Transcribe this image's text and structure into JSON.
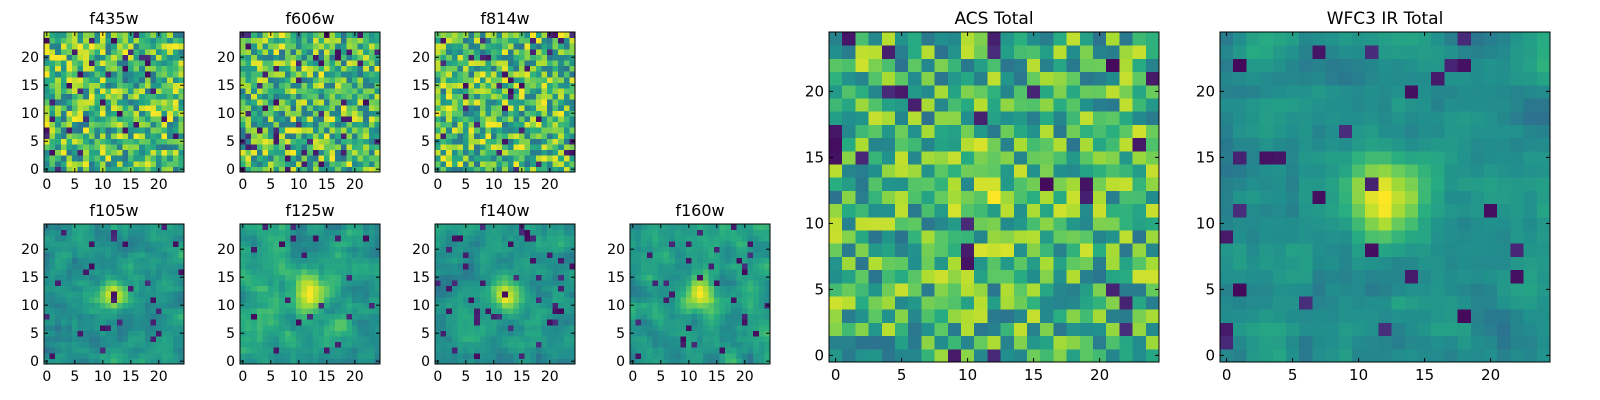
{
  "chart_data": {
    "type": "heatmap",
    "colormap": "viridis",
    "panels": [
      {
        "id": "f435w",
        "title": "f435w",
        "size": 25,
        "xlim": [
          -0.5,
          24.5
        ],
        "ylim": [
          -0.5,
          24.5
        ],
        "xticks": [
          0,
          5,
          10,
          15,
          20
        ],
        "yticks": [
          0,
          5,
          10,
          15,
          20
        ],
        "peak": 0.0,
        "dark_fraction": 0.06,
        "smooth": 0,
        "seed": 11
      },
      {
        "id": "f606w",
        "title": "f606w",
        "size": 25,
        "xlim": [
          -0.5,
          24.5
        ],
        "ylim": [
          -0.5,
          24.5
        ],
        "xticks": [
          0,
          5,
          10,
          15,
          20
        ],
        "yticks": [
          0,
          5,
          10,
          15,
          20
        ],
        "peak": 0.0,
        "dark_fraction": 0.06,
        "smooth": 0,
        "seed": 23
      },
      {
        "id": "f814w",
        "title": "f814w",
        "size": 25,
        "xlim": [
          -0.5,
          24.5
        ],
        "ylim": [
          -0.5,
          24.5
        ],
        "xticks": [
          0,
          5,
          10,
          15,
          20
        ],
        "yticks": [
          0,
          5,
          10,
          15,
          20
        ],
        "peak": 0.0,
        "dark_fraction": 0.06,
        "smooth": 0,
        "seed": 37
      },
      {
        "id": "f105w",
        "title": "f105w",
        "size": 25,
        "xlim": [
          -0.5,
          24.5
        ],
        "ylim": [
          -0.5,
          24.5
        ],
        "xticks": [
          0,
          5,
          10,
          15,
          20
        ],
        "yticks": [
          0,
          5,
          10,
          15,
          20
        ],
        "peak": 0.35,
        "dark_fraction": 0.05,
        "smooth": 1,
        "seed": 41
      },
      {
        "id": "f125w",
        "title": "f125w",
        "size": 25,
        "xlim": [
          -0.5,
          24.5
        ],
        "ylim": [
          -0.5,
          24.5
        ],
        "xticks": [
          0,
          5,
          10,
          15,
          20
        ],
        "yticks": [
          0,
          5,
          10,
          15,
          20
        ],
        "peak": 0.35,
        "dark_fraction": 0.04,
        "smooth": 1,
        "seed": 53
      },
      {
        "id": "f140w",
        "title": "f140w",
        "size": 25,
        "xlim": [
          -0.5,
          24.5
        ],
        "ylim": [
          -0.5,
          24.5
        ],
        "xticks": [
          0,
          5,
          10,
          15,
          20
        ],
        "yticks": [
          0,
          5,
          10,
          15,
          20
        ],
        "peak": 0.35,
        "dark_fraction": 0.05,
        "smooth": 1,
        "seed": 67
      },
      {
        "id": "f160w",
        "title": "f160w",
        "size": 25,
        "xlim": [
          -0.5,
          24.5
        ],
        "ylim": [
          -0.5,
          24.5
        ],
        "xticks": [
          0,
          5,
          10,
          15,
          20
        ],
        "yticks": [
          0,
          5,
          10,
          15,
          20
        ],
        "peak": 0.35,
        "dark_fraction": 0.06,
        "smooth": 1,
        "seed": 79
      },
      {
        "id": "acs-total",
        "title": "ACS Total",
        "size": 25,
        "xlim": [
          -0.5,
          24.5
        ],
        "ylim": [
          -0.5,
          24.5
        ],
        "xticks": [
          0,
          5,
          10,
          15,
          20
        ],
        "yticks": [
          0,
          5,
          10,
          15,
          20
        ],
        "peak": 0.1,
        "dark_fraction": 0.05,
        "smooth": 0,
        "seed": 97
      },
      {
        "id": "wfc3-ir-total",
        "title": "WFC3 IR Total",
        "size": 25,
        "xlim": [
          -0.5,
          24.5
        ],
        "ylim": [
          -0.5,
          24.5
        ],
        "xticks": [
          0,
          5,
          10,
          15,
          20
        ],
        "yticks": [
          0,
          5,
          10,
          15,
          20
        ],
        "peak": 0.5,
        "dark_fraction": 0.05,
        "smooth": 1,
        "seed": 113
      }
    ]
  }
}
